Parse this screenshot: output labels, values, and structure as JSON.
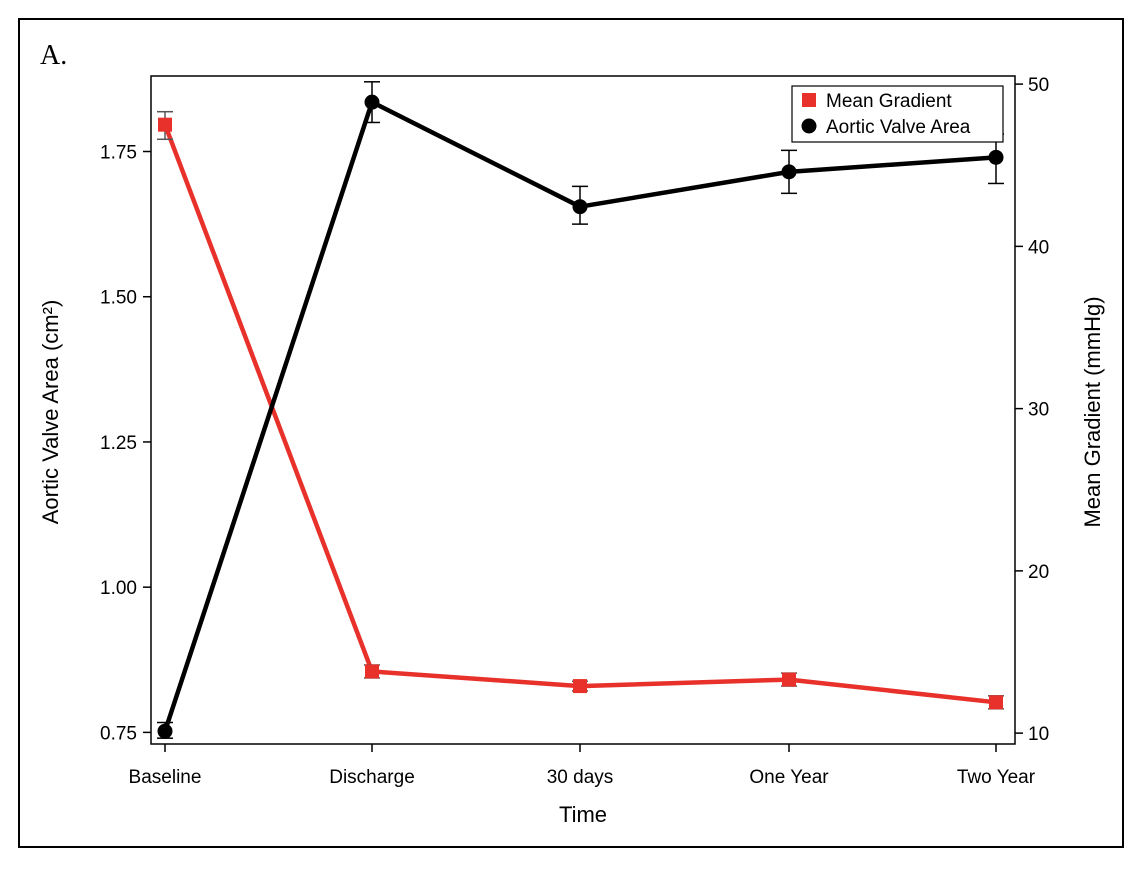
{
  "panel_label": "A.",
  "colors": {
    "mean_gradient": "#e8312a",
    "aortic_valve_area": "#000000"
  },
  "chart_data": {
    "type": "line",
    "title": "",
    "xlabel": "Time",
    "categories": [
      "Baseline",
      "Discharge",
      "30 days",
      "One Year",
      "Two Year"
    ],
    "y_left": {
      "label": "Aortic Valve Area (cm²)",
      "range": [
        0.73,
        1.88
      ],
      "ticks": [
        0.75,
        1.0,
        1.25,
        1.5,
        1.75
      ],
      "tick_labels": [
        "0.75",
        "1.00",
        "1.25",
        "1.50",
        "1.75"
      ]
    },
    "y_right": {
      "label": "Mean Gradient (mmHg)",
      "range": [
        9.33,
        50.5
      ],
      "ticks": [
        10,
        20,
        30,
        40,
        50
      ],
      "tick_labels": [
        "10",
        "20",
        "30",
        "40",
        "50"
      ]
    },
    "series": [
      {
        "name": "Mean Gradient",
        "axis": "right",
        "marker": "square",
        "color": "#e8312a",
        "values": [
          47.5,
          13.8,
          12.9,
          13.3,
          11.9
        ],
        "err_low": [
          46.6,
          13.4,
          12.6,
          12.9,
          11.5
        ],
        "err_high": [
          48.3,
          14.2,
          13.2,
          13.7,
          12.3
        ]
      },
      {
        "name": "Aortic Valve Area",
        "axis": "left",
        "marker": "circle",
        "color": "#000000",
        "values": [
          0.752,
          1.835,
          1.655,
          1.715,
          1.74
        ],
        "err_low": [
          0.74,
          1.8,
          1.625,
          1.678,
          1.695
        ],
        "err_high": [
          0.767,
          1.87,
          1.69,
          1.752,
          1.78
        ]
      }
    ],
    "legend_placement": "top-right",
    "grid": false
  }
}
